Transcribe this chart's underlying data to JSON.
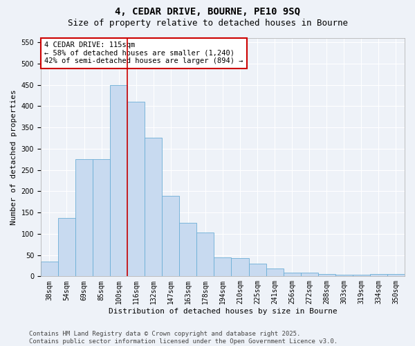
{
  "title": "4, CEDAR DRIVE, BOURNE, PE10 9SQ",
  "subtitle": "Size of property relative to detached houses in Bourne",
  "xlabel": "Distribution of detached houses by size in Bourne",
  "ylabel": "Number of detached properties",
  "categories": [
    "38sqm",
    "54sqm",
    "69sqm",
    "85sqm",
    "100sqm",
    "116sqm",
    "132sqm",
    "147sqm",
    "163sqm",
    "178sqm",
    "194sqm",
    "210sqm",
    "225sqm",
    "241sqm",
    "256sqm",
    "272sqm",
    "288sqm",
    "303sqm",
    "319sqm",
    "334sqm",
    "350sqm"
  ],
  "values": [
    35,
    137,
    275,
    275,
    450,
    410,
    325,
    190,
    125,
    103,
    45,
    43,
    30,
    18,
    8,
    8,
    5,
    4,
    4,
    5,
    5
  ],
  "bar_color": "#c8daf0",
  "bar_edge_color": "#6baed6",
  "red_line_color": "#cc0000",
  "ylim": [
    0,
    560
  ],
  "yticks": [
    0,
    50,
    100,
    150,
    200,
    250,
    300,
    350,
    400,
    450,
    500,
    550
  ],
  "annotation_title": "4 CEDAR DRIVE: 115sqm",
  "annotation_line1": "← 58% of detached houses are smaller (1,240)",
  "annotation_line2": "42% of semi-detached houses are larger (894) →",
  "annotation_box_color": "#ffffff",
  "annotation_box_edge": "#cc0000",
  "footer_line1": "Contains HM Land Registry data © Crown copyright and database right 2025.",
  "footer_line2": "Contains public sector information licensed under the Open Government Licence v3.0.",
  "background_color": "#eef2f8",
  "grid_color": "#ffffff",
  "title_fontsize": 10,
  "subtitle_fontsize": 9,
  "axis_label_fontsize": 8,
  "tick_fontsize": 7,
  "annotation_fontsize": 7.5,
  "footer_fontsize": 6.5
}
